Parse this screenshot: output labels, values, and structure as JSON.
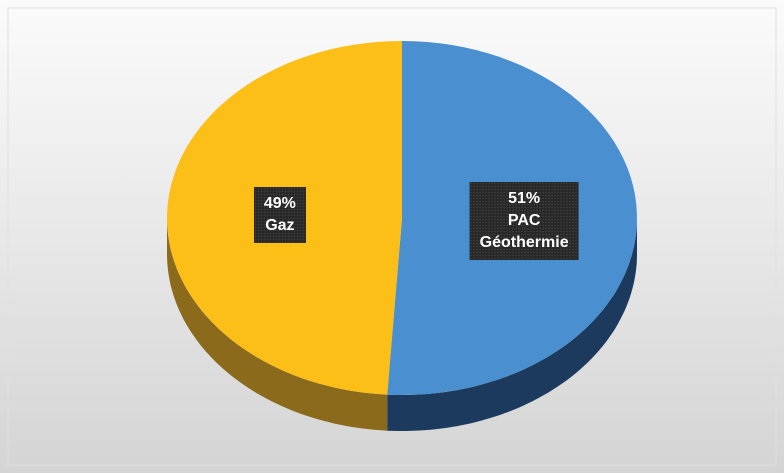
{
  "chart_data": {
    "type": "pie",
    "categories": [
      "PAC Géothermie",
      "Gaz"
    ],
    "values": [
      51,
      49
    ],
    "value_labels": [
      "51%",
      "49%"
    ],
    "colors": [
      "#4a90d0",
      "#fbbf17"
    ],
    "side_colors": [
      "#1b3a5e",
      "#8c6a1c"
    ]
  }
}
